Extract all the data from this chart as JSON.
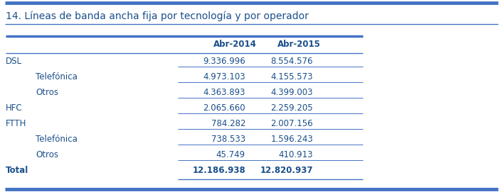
{
  "title": "14. Líneas de banda ancha fija por tecnología y por operador",
  "col_headers": [
    "Abr-2014",
    "Abr-2015"
  ],
  "rows": [
    {
      "label": "DSL",
      "indent": false,
      "val1": "9.336.996",
      "val2": "8.554.576",
      "bold": false
    },
    {
      "label": "Telefónica",
      "indent": true,
      "val1": "4.973.103",
      "val2": "4.155.573",
      "bold": false
    },
    {
      "label": "Otros",
      "indent": true,
      "val1": "4.363.893",
      "val2": "4.399.003",
      "bold": false
    },
    {
      "label": "HFC",
      "indent": false,
      "val1": "2.065.660",
      "val2": "2.259.205",
      "bold": false
    },
    {
      "label": "FTTH",
      "indent": false,
      "val1": "784.282",
      "val2": "2.007.156",
      "bold": false
    },
    {
      "label": "Telefónica",
      "indent": true,
      "val1": "738.533",
      "val2": "1.596.243",
      "bold": false
    },
    {
      "label": "Otros",
      "indent": true,
      "val1": "45.749",
      "val2": "410.913",
      "bold": false
    },
    {
      "label": "Total",
      "indent": false,
      "val1": "12.186.938",
      "val2": "12.820.937",
      "bold": true
    }
  ],
  "blue_dark": "#1a4f8a",
  "blue_light": "#4472C4",
  "bg_color": "#FFFFFF",
  "title_fontsize": 10,
  "header_fontsize": 8.5,
  "row_fontsize": 8.5,
  "fig_width": 7.07,
  "fig_height": 2.71,
  "dpi": 100
}
